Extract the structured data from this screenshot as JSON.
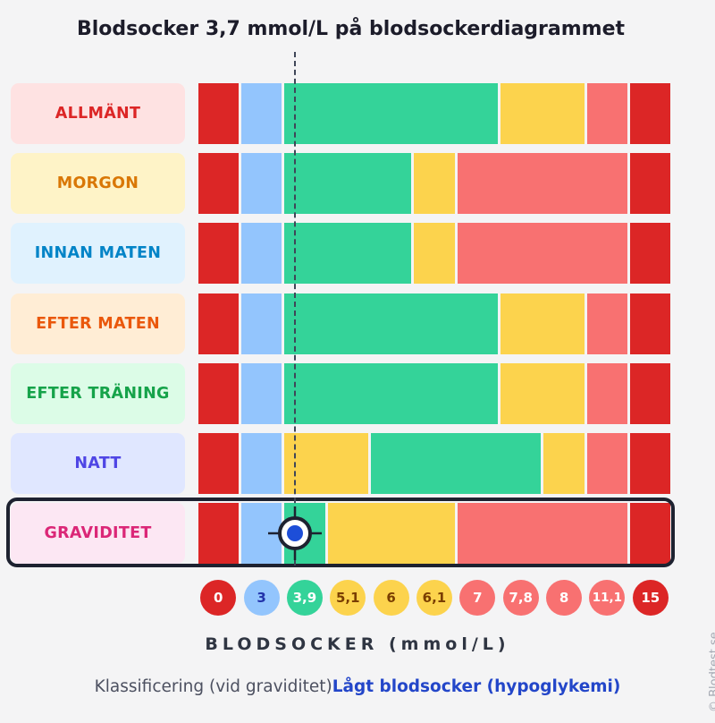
{
  "title": "Blodsocker 3,7 mmol/L på blodsockerdiagrammet",
  "watermark": "© Blodtest.se",
  "axis_label": "BLODSOCKER (mmol/L)",
  "classification": {
    "prefix": "Klassificering (vid graviditet)",
    "result": "Lågt blodsocker (hypoglykemi)"
  },
  "colors": {
    "red": "#dc2626",
    "blue": "#93c5fd",
    "green": "#34d399",
    "yellow": "#fcd34d",
    "salmon": "#f87171",
    "highlight_border": "#1e2230",
    "marker_dot": "#1d4ed8"
  },
  "chart_data": {
    "type": "table",
    "value": 3.7,
    "unit": "mmol/L",
    "highlighted_row": "GRAVIDITET",
    "scale_ticks": [
      {
        "label": "0",
        "color": "red",
        "text": "#ffffff"
      },
      {
        "label": "3",
        "color": "blue",
        "text": "#2233aa"
      },
      {
        "label": "3,9",
        "color": "green",
        "text": "#ffffff"
      },
      {
        "label": "5,1",
        "color": "yellow",
        "text": "#7a3e00"
      },
      {
        "label": "6",
        "color": "yellow",
        "text": "#7a3e00"
      },
      {
        "label": "6,1",
        "color": "yellow",
        "text": "#7a3e00"
      },
      {
        "label": "7",
        "color": "salmon",
        "text": "#ffffff"
      },
      {
        "label": "7,8",
        "color": "salmon",
        "text": "#ffffff"
      },
      {
        "label": "8",
        "color": "salmon",
        "text": "#ffffff"
      },
      {
        "label": "11,1",
        "color": "salmon",
        "text": "#ffffff"
      },
      {
        "label": "15",
        "color": "red",
        "text": "#ffffff"
      }
    ],
    "rows": [
      {
        "label": "ALLMÄNT",
        "bg": "#fee2e2",
        "fg": "#dc2626",
        "segments": [
          [
            0,
            1,
            "red"
          ],
          [
            1,
            2,
            "blue"
          ],
          [
            2,
            7,
            "green"
          ],
          [
            7,
            9,
            "yellow"
          ],
          [
            9,
            10,
            "salmon"
          ],
          [
            10,
            11,
            "red"
          ]
        ]
      },
      {
        "label": "MORGON",
        "bg": "#fef3c7",
        "fg": "#d97706",
        "segments": [
          [
            0,
            1,
            "red"
          ],
          [
            1,
            2,
            "blue"
          ],
          [
            2,
            5,
            "green"
          ],
          [
            5,
            6,
            "yellow"
          ],
          [
            6,
            10,
            "salmon"
          ],
          [
            10,
            11,
            "red"
          ]
        ]
      },
      {
        "label": "INNAN MATEN",
        "bg": "#e0f2fe",
        "fg": "#0284c7",
        "segments": [
          [
            0,
            1,
            "red"
          ],
          [
            1,
            2,
            "blue"
          ],
          [
            2,
            5,
            "green"
          ],
          [
            5,
            6,
            "yellow"
          ],
          [
            6,
            10,
            "salmon"
          ],
          [
            10,
            11,
            "red"
          ]
        ]
      },
      {
        "label": "EFTER MATEN",
        "bg": "#ffedd5",
        "fg": "#ea580c",
        "segments": [
          [
            0,
            1,
            "red"
          ],
          [
            1,
            2,
            "blue"
          ],
          [
            2,
            7,
            "green"
          ],
          [
            7,
            9,
            "yellow"
          ],
          [
            9,
            10,
            "salmon"
          ],
          [
            10,
            11,
            "red"
          ]
        ]
      },
      {
        "label": "EFTER TRÄNING",
        "bg": "#dcfce7",
        "fg": "#16a34a",
        "segments": [
          [
            0,
            1,
            "red"
          ],
          [
            1,
            2,
            "blue"
          ],
          [
            2,
            7,
            "green"
          ],
          [
            7,
            9,
            "yellow"
          ],
          [
            9,
            10,
            "salmon"
          ],
          [
            10,
            11,
            "red"
          ]
        ]
      },
      {
        "label": "NATT",
        "bg": "#e0e7ff",
        "fg": "#4f46e5",
        "segments": [
          [
            0,
            1,
            "red"
          ],
          [
            1,
            2,
            "blue"
          ],
          [
            2,
            4,
            "yellow"
          ],
          [
            4,
            8,
            "green"
          ],
          [
            8,
            9,
            "yellow"
          ],
          [
            9,
            10,
            "salmon"
          ],
          [
            10,
            11,
            "red"
          ]
        ]
      },
      {
        "label": "GRAVIDITET",
        "bg": "#fce7f3",
        "fg": "#db2777",
        "segments": [
          [
            0,
            1,
            "red"
          ],
          [
            1,
            2,
            "blue"
          ],
          [
            2,
            3,
            "green"
          ],
          [
            3,
            6,
            "yellow"
          ],
          [
            6,
            10,
            "salmon"
          ],
          [
            10,
            11,
            "red"
          ]
        ]
      }
    ]
  }
}
